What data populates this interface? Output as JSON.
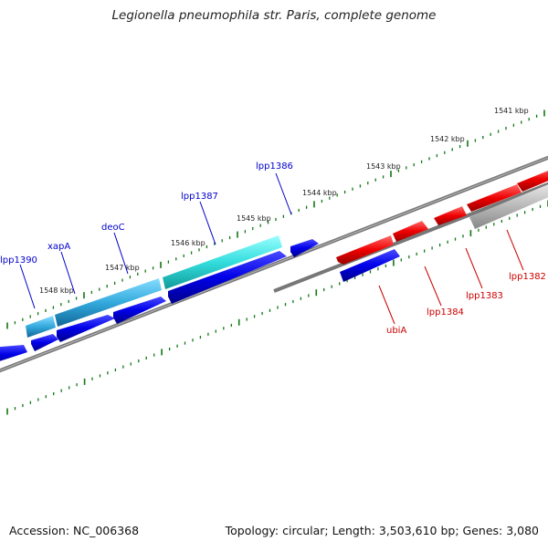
{
  "header": {
    "title": "Legionella pneumophila str. Paris, complete genome"
  },
  "footer": {
    "accession": "Accession: NC_006368",
    "summary": "Topology: circular; Length: 3,503,610 bp; Genes: 3,080"
  },
  "scale": {
    "kbp_labels": [
      "1548 kbp",
      "1547 kbp",
      "1546 kbp",
      "1545 kbp",
      "1544 kbp",
      "1543 kbp",
      "1542 kbp",
      "1541 kbp"
    ]
  },
  "genes": [
    {
      "id": "lpp1390",
      "label": "lpp1390",
      "color": "#0000cc"
    },
    {
      "id": "xapA",
      "label": "xapA",
      "color": "#0000cc"
    },
    {
      "id": "deoC",
      "label": "deoC",
      "color": "#0000cc"
    },
    {
      "id": "lpp1387",
      "label": "lpp1387",
      "color": "#0000cc"
    },
    {
      "id": "lpp1386",
      "label": "lpp1386",
      "color": "#0000cc"
    },
    {
      "id": "ubiA",
      "label": "ubiA",
      "color": "#cc0000"
    },
    {
      "id": "lpp1384",
      "label": "lpp1384",
      "color": "#cc0000"
    },
    {
      "id": "lpp1383",
      "label": "lpp1383",
      "color": "#cc0000"
    },
    {
      "id": "lpp1382",
      "label": "lpp1382",
      "color": "#cc0000"
    }
  ],
  "colors": {
    "forward_strand": "#0000e0",
    "reverse_strand": "#ee0000",
    "highlight_cyan": "#33dddd",
    "highlight_blue": "#33aadd",
    "grey_gene": "#bbbbbb",
    "ruler_tick": "#117711",
    "backbone": "#777777"
  }
}
